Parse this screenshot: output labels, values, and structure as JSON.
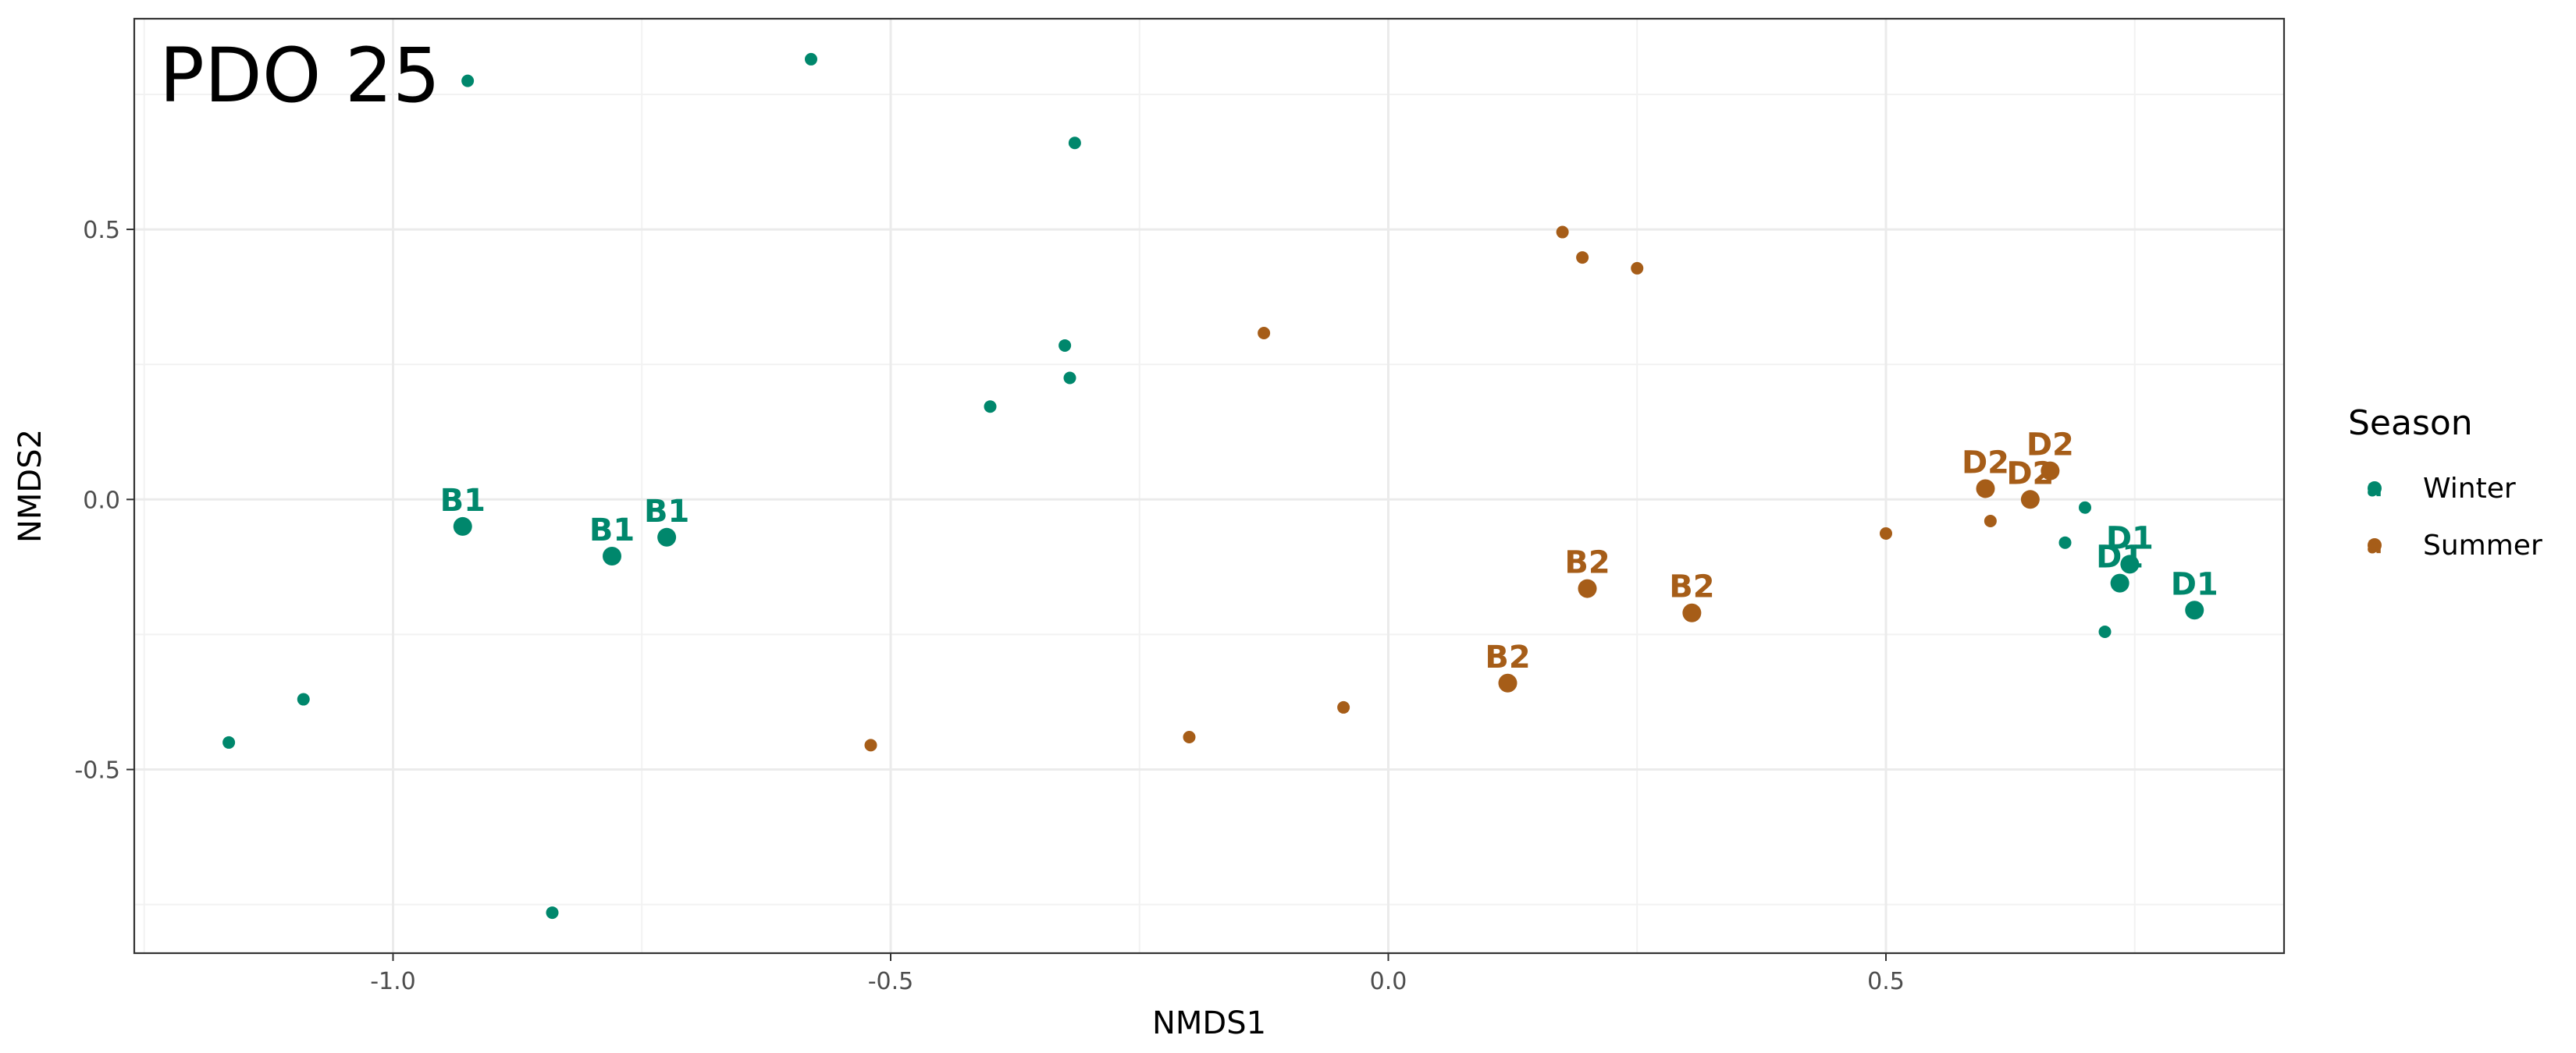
{
  "chart_data": {
    "type": "scatter",
    "title": "PDO 25",
    "xlabel": "NMDS1",
    "ylabel": "NMDS2",
    "xlim": [
      -1.26,
      0.9
    ],
    "ylim": [
      -0.84,
      0.89
    ],
    "xticks": [
      -1.0,
      -0.5,
      0.0,
      0.5
    ],
    "xtick_labels": [
      "-1.0",
      "-0.5",
      "0.0",
      "0.5"
    ],
    "yticks": [
      -0.5,
      0.0,
      0.5
    ],
    "ytick_labels": [
      "-0.5",
      "0.0",
      "0.5"
    ],
    "grid": true,
    "legend": {
      "title": "Season",
      "position": "right",
      "entries": [
        {
          "name": "Winter",
          "color": "#00876c",
          "key_glyph": "a"
        },
        {
          "name": "Summer",
          "color": "#a65d18",
          "key_glyph": "a"
        }
      ]
    },
    "series": [
      {
        "name": "Winter",
        "color": "#00876c",
        "points": [
          {
            "x": -0.925,
            "y": 0.775
          },
          {
            "x": -0.58,
            "y": 0.815
          },
          {
            "x": -0.315,
            "y": 0.66
          },
          {
            "x": -0.325,
            "y": 0.285
          },
          {
            "x": -0.32,
            "y": 0.225
          },
          {
            "x": -0.4,
            "y": 0.172
          },
          {
            "x": -1.09,
            "y": -0.37
          },
          {
            "x": -1.165,
            "y": -0.45
          },
          {
            "x": -0.84,
            "y": -0.765
          },
          {
            "x": 0.7,
            "y": -0.015
          },
          {
            "x": 0.68,
            "y": -0.08
          },
          {
            "x": 0.72,
            "y": -0.245
          },
          {
            "x": -0.93,
            "y": -0.05,
            "label": "B1"
          },
          {
            "x": -0.78,
            "y": -0.105,
            "label": "B1"
          },
          {
            "x": -0.725,
            "y": -0.07,
            "label": "B1"
          },
          {
            "x": 0.745,
            "y": -0.12,
            "label": "D1"
          },
          {
            "x": 0.735,
            "y": -0.155,
            "label": "D1"
          },
          {
            "x": 0.81,
            "y": -0.205,
            "label": "D1"
          }
        ]
      },
      {
        "name": "Summer",
        "color": "#a65d18",
        "points": [
          {
            "x": 0.175,
            "y": 0.495
          },
          {
            "x": 0.195,
            "y": 0.448
          },
          {
            "x": 0.25,
            "y": 0.428
          },
          {
            "x": -0.125,
            "y": 0.308
          },
          {
            "x": 0.5,
            "y": -0.063
          },
          {
            "x": 0.605,
            "y": -0.04
          },
          {
            "x": -0.52,
            "y": -0.455
          },
          {
            "x": -0.2,
            "y": -0.44
          },
          {
            "x": -0.045,
            "y": -0.385
          },
          {
            "x": 0.2,
            "y": -0.165,
            "label": "B2"
          },
          {
            "x": 0.305,
            "y": -0.21,
            "label": "B2"
          },
          {
            "x": 0.12,
            "y": -0.34,
            "label": "B2"
          },
          {
            "x": 0.6,
            "y": 0.02,
            "label": "D2"
          },
          {
            "x": 0.665,
            "y": 0.053,
            "label": "D2"
          },
          {
            "x": 0.645,
            "y": 0.0,
            "label": "D2"
          }
        ]
      }
    ]
  }
}
